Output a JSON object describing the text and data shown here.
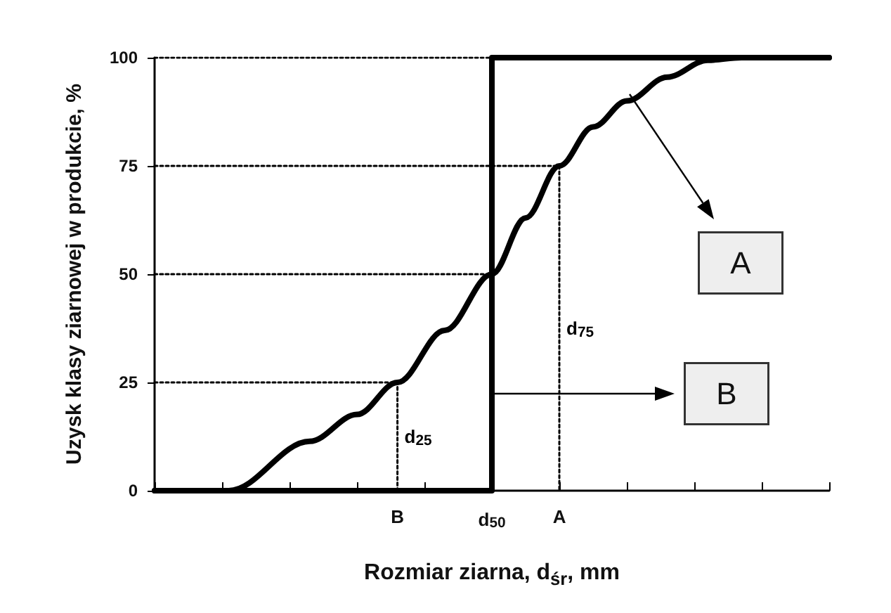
{
  "chart_data": {
    "type": "line",
    "xlabel": "Rozmiar ziarna, d$_{śr}$, mm",
    "ylabel": "Uzysk klasy ziarnowej w produkcie, %",
    "categories": [
      null,
      null,
      null,
      null,
      null,
      null,
      null,
      null,
      null,
      null,
      null,
      null,
      null,
      null,
      null,
      null,
      null,
      null,
      null,
      null,
      null,
      null,
      null,
      null,
      null,
      null,
      null,
      null,
      null,
      null,
      null,
      null,
      null,
      null,
      null,
      null,
      "B",
      null,
      null,
      null,
      null,
      null,
      null,
      null,
      null,
      null,
      null,
      null,
      null,
      null,
      "d$_{50}$",
      null,
      null,
      null,
      null,
      null,
      null,
      null,
      null,
      null,
      "A",
      null,
      null,
      null,
      null,
      null,
      null,
      null,
      null,
      null,
      null,
      null,
      null,
      null,
      null,
      null,
      null,
      null,
      null,
      null,
      null,
      null,
      null,
      null,
      null,
      null,
      null,
      null,
      null,
      null,
      null,
      null,
      null,
      null,
      null,
      null,
      null,
      null,
      null,
      null,
      null
    ],
    "ylim": [
      0,
      100
    ],
    "yticks": [
      0,
      25,
      50,
      75,
      100
    ],
    "grid": false,
    "legend": false,
    "marker": "none",
    "series": [
      {
        "color": "#000000",
        "line_style": "solid",
        "values": [
          0,
          null,
          null,
          null,
          null,
          null,
          null,
          null,
          null,
          null,
          null,
          0,
          null,
          null,
          null,
          null,
          null,
          null,
          null,
          null,
          null,
          null,
          null,
          11.4,
          null,
          null,
          null,
          null,
          null,
          null,
          17.6,
          null,
          null,
          null,
          null,
          null,
          25,
          null,
          null,
          null,
          null,
          null,
          null,
          37,
          null,
          null,
          null,
          null,
          null,
          null,
          50,
          null,
          null,
          null,
          null,
          63,
          null,
          null,
          null,
          null,
          75,
          null,
          null,
          null,
          null,
          84,
          null,
          null,
          null,
          null,
          90,
          null,
          null,
          null,
          null,
          null,
          95.5,
          null,
          null,
          null,
          null,
          null,
          99.4,
          null,
          null,
          null,
          null,
          100,
          null,
          null,
          null,
          null,
          null,
          null,
          null,
          null,
          null,
          null,
          null,
          null,
          100
        ]
      },
      {
        "type": "step",
        "color": "#000000",
        "line_style": "solid",
        "values": [
          0,
          null,
          null,
          null,
          null,
          null,
          null,
          null,
          null,
          null,
          null,
          null,
          null,
          null,
          null,
          null,
          null,
          null,
          null,
          null,
          null,
          null,
          null,
          null,
          null,
          null,
          null,
          null,
          null,
          null,
          null,
          null,
          null,
          null,
          null,
          null,
          null,
          null,
          null,
          null,
          null,
          null,
          null,
          null,
          null,
          null,
          null,
          null,
          null,
          null,
          100,
          null,
          null,
          null,
          null,
          null,
          null,
          null,
          null,
          null,
          null,
          null,
          null,
          null,
          null,
          null,
          null,
          null,
          null,
          null,
          null,
          null,
          null,
          null,
          null,
          null,
          null,
          null,
          null,
          null,
          null,
          null,
          null,
          null,
          null,
          null,
          null,
          null,
          null,
          null,
          null,
          null,
          null,
          null,
          null,
          null,
          null,
          null,
          null,
          null,
          100
        ]
      },
      {
        "type": "step",
        "name": "d$_{25}$",
        "color": "#000000",
        "line_style": "dotted",
        "values": [
          25,
          null,
          null,
          null,
          null,
          null,
          null,
          null,
          null,
          null,
          null,
          null,
          null,
          null,
          null,
          null,
          null,
          null,
          null,
          null,
          null,
          null,
          null,
          null,
          null,
          null,
          null,
          null,
          null,
          null,
          null,
          null,
          null,
          null,
          null,
          null,
          0,
          null,
          null,
          null,
          null,
          null,
          null,
          null,
          null,
          null,
          null,
          null,
          null,
          null,
          null,
          null,
          null,
          null,
          null,
          null,
          null,
          null,
          null,
          null,
          null,
          null,
          null,
          null,
          null,
          null,
          null,
          null,
          null,
          null,
          null,
          null,
          null,
          null,
          null,
          null,
          null,
          null,
          null,
          null,
          null,
          null,
          null,
          null,
          null,
          null,
          null,
          null,
          null,
          null,
          null,
          null,
          null,
          null,
          null,
          null,
          null,
          null,
          null,
          null,
          null
        ]
      },
      {
        "color": "#000000",
        "line_style": "dotted",
        "values": [
          50,
          null,
          null,
          null,
          null,
          null,
          null,
          null,
          null,
          null,
          null,
          null,
          null,
          null,
          null,
          null,
          null,
          null,
          null,
          null,
          null,
          null,
          null,
          null,
          null,
          null,
          null,
          null,
          null,
          null,
          null,
          null,
          null,
          null,
          null,
          null,
          null,
          null,
          null,
          null,
          null,
          null,
          null,
          null,
          null,
          null,
          null,
          null,
          null,
          null,
          50,
          null,
          null,
          null,
          null,
          null,
          null,
          null,
          null,
          null,
          null,
          null,
          null,
          null,
          null,
          null,
          null,
          null,
          null,
          null,
          null,
          null,
          null,
          null,
          null,
          null,
          null,
          null,
          null,
          null,
          null,
          null,
          null,
          null,
          null,
          null,
          null,
          null,
          null,
          null,
          null,
          null,
          null,
          null,
          null,
          null,
          null,
          null,
          null,
          null,
          null
        ]
      },
      {
        "type": "step",
        "name": "d$_{75}$",
        "color": "#000000",
        "line_style": "dotted",
        "values": [
          75,
          null,
          null,
          null,
          null,
          null,
          null,
          null,
          null,
          null,
          null,
          null,
          null,
          null,
          null,
          null,
          null,
          null,
          null,
          null,
          null,
          null,
          null,
          null,
          null,
          null,
          null,
          null,
          null,
          null,
          null,
          null,
          null,
          null,
          null,
          null,
          null,
          null,
          null,
          null,
          null,
          null,
          null,
          null,
          null,
          null,
          null,
          null,
          null,
          null,
          null,
          null,
          null,
          null,
          null,
          null,
          null,
          null,
          null,
          null,
          0,
          null,
          null,
          null,
          null,
          null,
          null,
          null,
          null,
          null,
          null,
          null,
          null,
          null,
          null,
          null,
          null,
          null,
          null,
          null,
          null,
          null,
          null,
          null,
          null,
          null,
          null,
          null,
          null,
          null,
          null,
          null,
          null,
          null,
          null,
          null,
          null,
          null,
          null,
          null,
          null
        ]
      },
      {
        "color": "#000000",
        "line_style": "dotted",
        "values": [
          100,
          null,
          null,
          null,
          null,
          null,
          null,
          null,
          null,
          null,
          null,
          null,
          null,
          null,
          null,
          null,
          null,
          null,
          null,
          null,
          null,
          null,
          null,
          null,
          null,
          null,
          null,
          null,
          null,
          null,
          null,
          null,
          null,
          null,
          null,
          null,
          null,
          null,
          null,
          null,
          null,
          null,
          null,
          null,
          null,
          null,
          null,
          null,
          null,
          null,
          100,
          null,
          null,
          null,
          null,
          null,
          null,
          null,
          null,
          null,
          null,
          null,
          null,
          null,
          null,
          null,
          null,
          null,
          null,
          null,
          null,
          null,
          null,
          null,
          null,
          null,
          null,
          null,
          null,
          null,
          null,
          null,
          null,
          null,
          null,
          null,
          null,
          null,
          null,
          null,
          null,
          null,
          null,
          null,
          null,
          null,
          null,
          null,
          null,
          null,
          null
        ]
      }
    ],
    "annotations": [
      "A",
      "B"
    ]
  }
}
